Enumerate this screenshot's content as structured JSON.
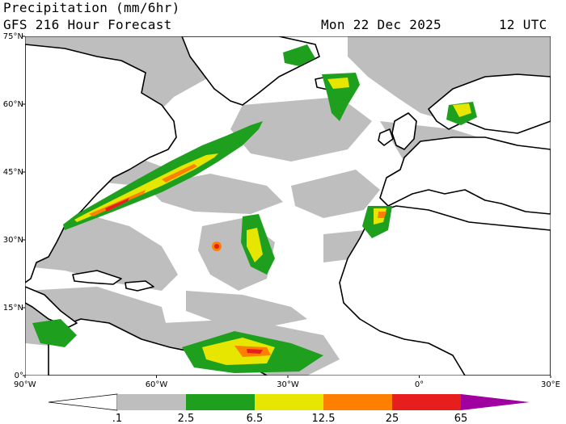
{
  "header": {
    "title": "Precipitation (mm/6hr)",
    "subtitle": "GFS 216 Hour Forecast",
    "date": "Mon 22 Dec 2025",
    "time": "12 UTC"
  },
  "axes": {
    "lat_labels": [
      "75°N",
      "60°N",
      "45°N",
      "30°N",
      "15°N",
      "0°"
    ],
    "lon_labels": [
      "90°W",
      "60°W",
      "30°W",
      "0°",
      "30°E"
    ],
    "lat_values": [
      75,
      60,
      45,
      30,
      15,
      0
    ],
    "lon_values": [
      -90,
      -60,
      -30,
      0,
      30
    ],
    "lat_range": [
      0,
      75
    ],
    "lon_range": [
      -90,
      30
    ]
  },
  "colorbar": {
    "levels": [
      ".1",
      "2.5",
      "6.5",
      "12.5",
      "25",
      "65"
    ],
    "colors": [
      "#bebebe",
      "#1ea01e",
      "#e6e600",
      "#ff7f00",
      "#e61e1e",
      "#a000a0"
    ]
  },
  "colors": {
    "land": "#ffffff",
    "light_precip": "#bebebe",
    "moderate_precip": "#1ea01e",
    "heavy_precip": "#e6e600",
    "very_heavy_precip": "#ff7f00",
    "extreme_precip": "#e61e1e",
    "coastline": "#000000"
  }
}
